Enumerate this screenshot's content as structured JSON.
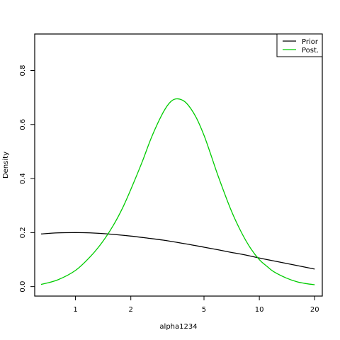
{
  "chart_data": {
    "type": "line",
    "xlabel": "alpha1234",
    "ylabel": "Density",
    "x_scale": "log",
    "xlim": [
      0.6,
      22
    ],
    "ylim": [
      -0.035,
      0.935
    ],
    "x_ticks": [
      1,
      2,
      5,
      10,
      20
    ],
    "x_tick_labels": [
      "1",
      "2",
      "5",
      "10",
      "20"
    ],
    "y_ticks": [
      0.0,
      0.2,
      0.4,
      0.6,
      0.8
    ],
    "y_tick_labels": [
      "0.0",
      "0.2",
      "0.4",
      "0.6",
      "0.8"
    ],
    "grid": false,
    "legend_position": "top-right",
    "series": [
      {
        "name": "Prior",
        "color": "#000000",
        "x": [
          0.65,
          0.8,
          1.0,
          1.2,
          1.5,
          2.0,
          2.5,
          3.0,
          4.0,
          5.0,
          6.0,
          7.0,
          8.0,
          10.0,
          12.0,
          15.0,
          20.0
        ],
        "y": [
          0.195,
          0.199,
          0.2,
          0.199,
          0.195,
          0.187,
          0.179,
          0.172,
          0.158,
          0.146,
          0.136,
          0.127,
          0.12,
          0.106,
          0.095,
          0.082,
          0.065
        ]
      },
      {
        "name": "Post.",
        "color": "#00cc00",
        "x": [
          0.65,
          0.8,
          1.0,
          1.2,
          1.4,
          1.6,
          1.8,
          2.0,
          2.3,
          2.6,
          3.0,
          3.3,
          3.6,
          4.0,
          4.5,
          5.0,
          5.5,
          6.0,
          7.0,
          8.0,
          9.0,
          10.0,
          11.0,
          12.0,
          14.0,
          16.0,
          18.0,
          20.0
        ],
        "y": [
          0.008,
          0.025,
          0.06,
          0.11,
          0.165,
          0.225,
          0.29,
          0.36,
          0.46,
          0.555,
          0.645,
          0.685,
          0.695,
          0.68,
          0.63,
          0.56,
          0.48,
          0.405,
          0.285,
          0.2,
          0.14,
          0.1,
          0.075,
          0.055,
          0.032,
          0.018,
          0.011,
          0.007
        ]
      }
    ]
  }
}
